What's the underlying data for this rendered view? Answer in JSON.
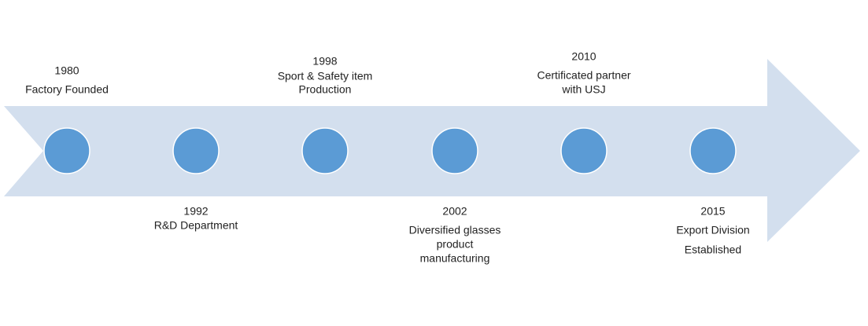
{
  "events": [
    {
      "year": "1980",
      "lines": [
        "Factory Founded"
      ]
    },
    {
      "year": "1992",
      "lines": [
        "R&D Department"
      ]
    },
    {
      "year": "1998",
      "lines": [
        "Sport & Safety item",
        "Production"
      ]
    },
    {
      "year": "2002",
      "lines": [
        "Diversified glasses",
        "product",
        "manufacturing"
      ]
    },
    {
      "year": "2010",
      "lines": [
        "Certificated partner",
        "with USJ"
      ]
    },
    {
      "year": "2015",
      "lines": [
        "Export Division",
        "Established"
      ]
    }
  ]
}
